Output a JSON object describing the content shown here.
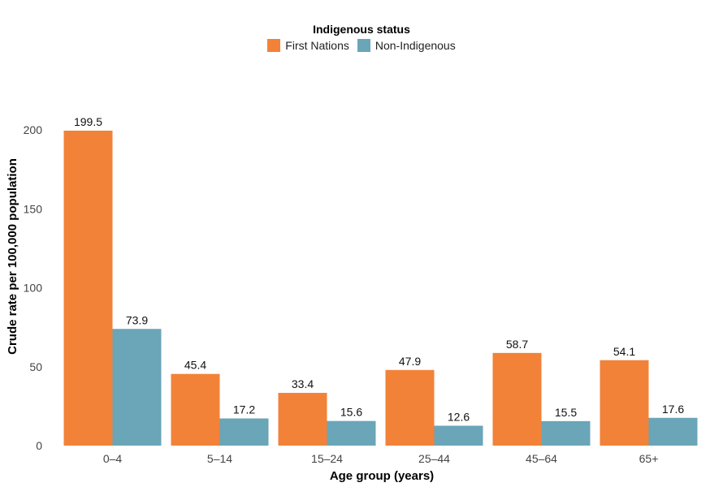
{
  "chart_data": {
    "type": "bar",
    "legend_title": "Indigenous status",
    "legend_position": "top-center",
    "xlabel": "Age group (years)",
    "ylabel": "Crude rate per 100,000 population",
    "categories": [
      "0–4",
      "5–14",
      "15–24",
      "25–44",
      "45–64",
      "65+"
    ],
    "ylim": [
      0,
      200
    ],
    "yticks": [
      0,
      50,
      100,
      150,
      200
    ],
    "grid": false,
    "series": [
      {
        "name": "First Nations",
        "color": "#F28238",
        "values": [
          199.5,
          45.4,
          33.4,
          47.9,
          58.7,
          54.1
        ]
      },
      {
        "name": "Non-Indigenous",
        "color": "#6AA5B8",
        "values": [
          73.9,
          17.2,
          15.6,
          12.6,
          15.5,
          17.6
        ]
      }
    ]
  }
}
